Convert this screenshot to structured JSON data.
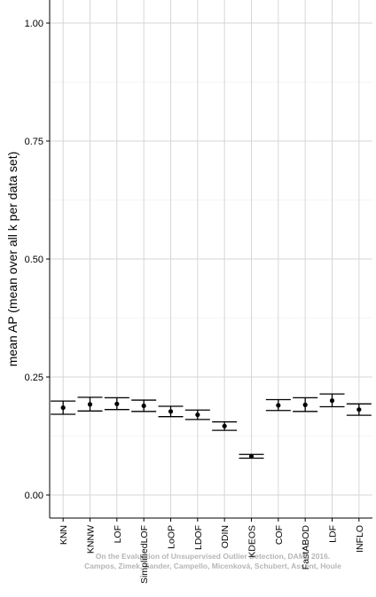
{
  "chart_data": {
    "type": "errorbar",
    "ylabel": "mean AP (mean over all k per data set)",
    "xlabel": "",
    "ylim": [
      0,
      1.05
    ],
    "yticks": [
      "0.00",
      "0.25",
      "0.50",
      "0.75",
      "1.00"
    ],
    "ytick_values": [
      0,
      0.25,
      0.5,
      0.75,
      1.0
    ],
    "grid": true,
    "categories": [
      "KNN",
      "KNNW",
      "LOF",
      "SimplifiedLOF",
      "LoOP",
      "LDOF",
      "ODIN",
      "KDEOS",
      "COF",
      "FastABOD",
      "LDF",
      "INFLO"
    ],
    "mean": [
      0.185,
      0.192,
      0.193,
      0.189,
      0.177,
      0.17,
      0.146,
      0.082,
      0.19,
      0.191,
      0.2,
      0.181
    ],
    "lower": [
      0.171,
      0.178,
      0.181,
      0.177,
      0.166,
      0.16,
      0.137,
      0.078,
      0.179,
      0.177,
      0.187,
      0.169
    ],
    "upper": [
      0.199,
      0.207,
      0.206,
      0.201,
      0.188,
      0.18,
      0.155,
      0.086,
      0.202,
      0.206,
      0.214,
      0.193
    ]
  },
  "watermark": {
    "line1": "On the Evaluation of Unsupervised Outlier Detection, DAMI, 2016.",
    "line2": "Campos, Zimek, Sander, Campello, Micenková, Schubert, Assent, Houle"
  }
}
